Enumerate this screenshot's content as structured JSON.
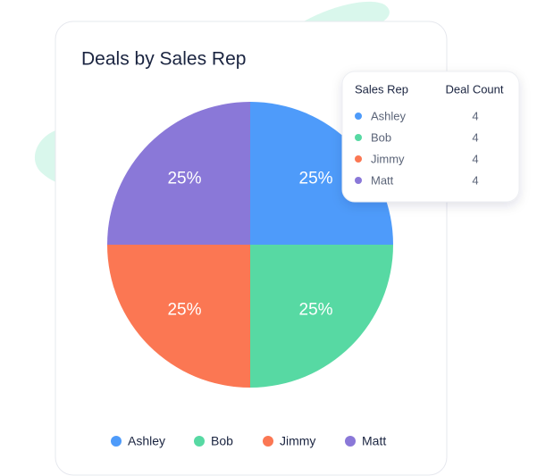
{
  "chart_data": {
    "type": "pie",
    "title": "Deals by Sales Rep",
    "categories": [
      "Ashley",
      "Bob",
      "Jimmy",
      "Matt"
    ],
    "values": [
      25,
      25,
      25,
      25
    ],
    "value_labels": [
      "25%",
      "25%",
      "25%",
      "25%"
    ],
    "colors": [
      "#4e9bfa",
      "#57d9a3",
      "#fb7753",
      "#8a78d8"
    ]
  },
  "table": {
    "headers": [
      "Sales Rep",
      "Deal Count"
    ],
    "rows": [
      [
        "Ashley",
        4
      ],
      [
        "Bob",
        4
      ],
      [
        "Jimmy",
        4
      ],
      [
        "Matt",
        4
      ]
    ]
  }
}
